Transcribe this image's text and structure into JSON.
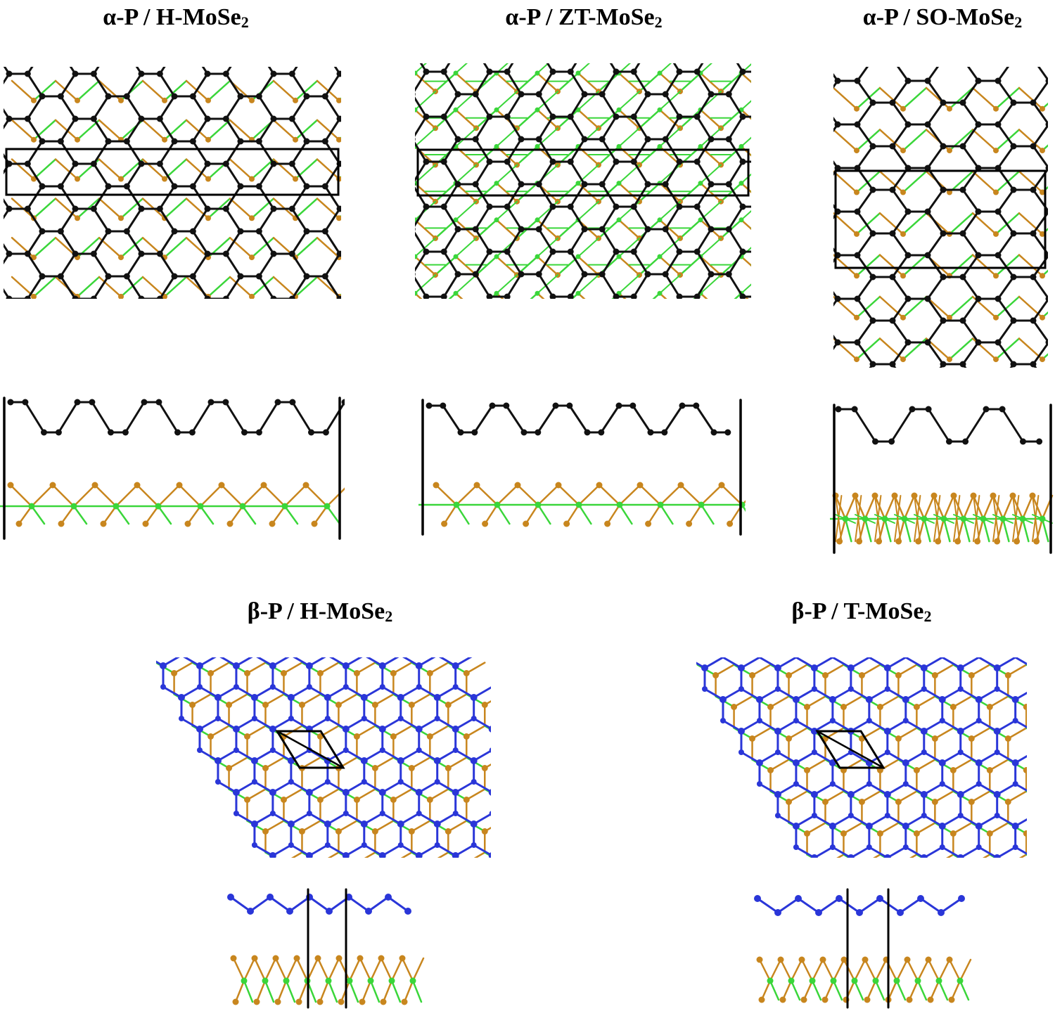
{
  "colors": {
    "phosphorus_alpha": "#111111",
    "phosphorus_beta": "#2a36d8",
    "molybdenum": "#3ad63a",
    "selenium": "#c8861e",
    "cell_outline": "#000000"
  },
  "panels": [
    {
      "id": "a1",
      "title_main": "α-P / H-MoSe",
      "title_sub": "2",
      "kind": "alpha-top",
      "cell": "wide"
    },
    {
      "id": "a2",
      "title_main": "α-P / ZT-MoSe",
      "title_sub": "2",
      "kind": "alpha-top",
      "cell": "wide"
    },
    {
      "id": "a3",
      "title_main": "α-P / SO-MoSe",
      "title_sub": "2",
      "kind": "alpha-top",
      "cell": "tall"
    },
    {
      "id": "b1",
      "title_main": "β-P / H-MoSe",
      "title_sub": "2",
      "kind": "beta-top"
    },
    {
      "id": "b2",
      "title_main": "β-P / T-MoSe",
      "title_sub": "2",
      "kind": "beta-top"
    }
  ]
}
